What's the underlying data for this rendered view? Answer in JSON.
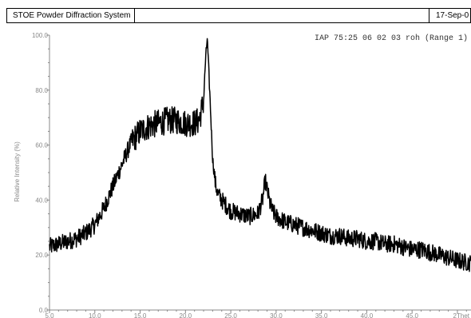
{
  "header": {
    "system": "STOE Powder Diffraction System",
    "middle": "",
    "date": "17-Sep-0"
  },
  "chart_data": {
    "type": "line",
    "title": "",
    "annotation": "IAP 75:25 06 02 03 roh (Range 1)",
    "xlabel": "2Thet",
    "ylabel": "Relative Intensity (%)",
    "xlim": [
      5.0,
      51.5
    ],
    "ylim": [
      0.0,
      100.0
    ],
    "x_ticks": [
      "5.0",
      "10.0",
      "15.0",
      "20.0",
      "25.0",
      "30.0",
      "35.0",
      "40.0",
      "45.0"
    ],
    "y_ticks": [
      "0.0",
      "20.0",
      "40.0",
      "60.0",
      "80.0",
      "100.0"
    ],
    "grid": false,
    "color": "#000000",
    "series": [
      {
        "x": [
          5.0,
          6.0,
          7.0,
          8.0,
          9.0,
          10.0,
          11.0,
          12.0,
          13.0,
          14.0,
          15.0,
          15.5,
          16.0,
          17.0,
          18.0,
          19.0,
          20.0,
          21.0,
          21.5,
          22.0,
          22.2,
          22.4,
          22.6,
          22.8,
          23.0,
          23.3,
          23.6,
          24.0,
          24.5,
          25.0,
          26.0,
          27.0,
          28.0,
          28.5,
          28.8,
          29.0,
          29.3,
          29.6,
          30.0,
          31.0,
          32.0,
          33.0,
          34.0,
          35.0,
          36.0,
          37.0,
          38.0,
          39.0,
          40.0,
          41.0,
          42.0,
          43.0,
          44.0,
          45.0,
          46.0,
          47.0,
          48.0,
          49.0,
          50.0,
          51.5
        ],
        "y": [
          23,
          24,
          25,
          26,
          28,
          31,
          37,
          45,
          53,
          61,
          65,
          66,
          67,
          68,
          69,
          69,
          68,
          68,
          69,
          76,
          90,
          99,
          85,
          70,
          55,
          46,
          42,
          40,
          38,
          36,
          35,
          34,
          35,
          40,
          47,
          44,
          39,
          36,
          34,
          32,
          31,
          30,
          29,
          28,
          27,
          27,
          26,
          26,
          25,
          25,
          24,
          24,
          23,
          22,
          22,
          21,
          20,
          19,
          18,
          17
        ]
      }
    ]
  }
}
